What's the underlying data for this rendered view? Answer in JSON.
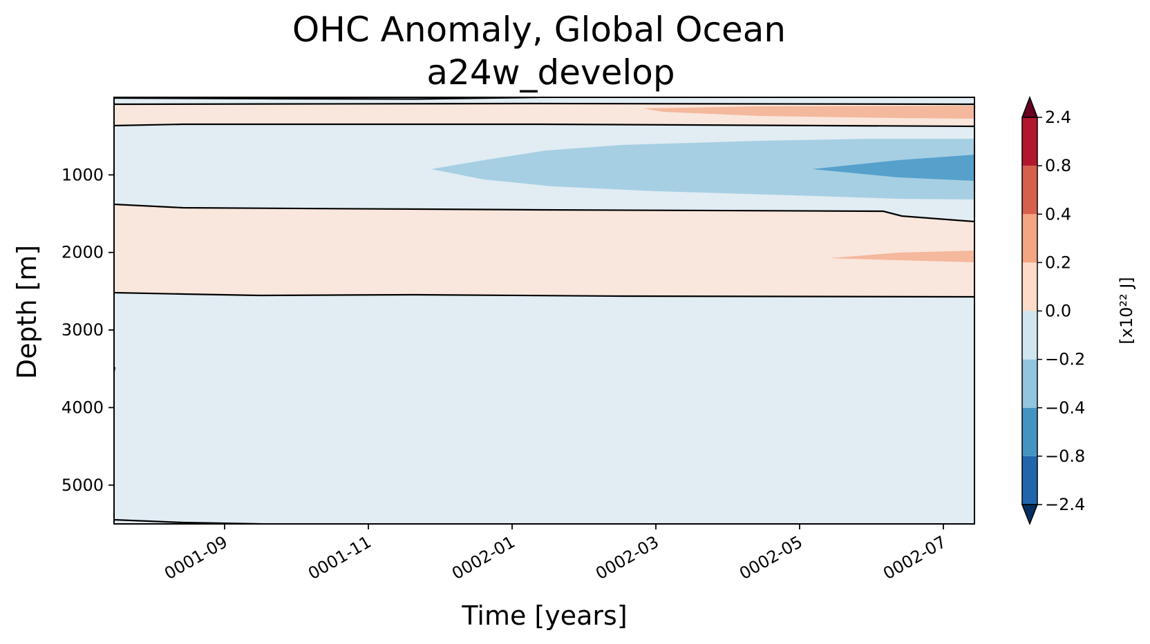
{
  "chart_data": {
    "type": "contourf",
    "title": "OHC Anomaly, Global Ocean",
    "subtitle": "a24w_develop",
    "xlabel": "Time [years]",
    "ylabel": "Depth [m]",
    "x_tick_labels": [
      "0001-09",
      "0001-11",
      "0002-01",
      "0002-03",
      "0002-05",
      "0002-07"
    ],
    "y_ticks": [
      1000,
      2000,
      3000,
      4000,
      5000
    ],
    "y_tick_labels": [
      "1000",
      "2000",
      "3000",
      "4000",
      "5000"
    ],
    "ylim": [
      5500,
      0
    ],
    "y_inverted": true,
    "colorbar": {
      "label": "[x10²² J]",
      "levels": [
        -2.4,
        -0.8,
        -0.4,
        -0.2,
        0.0,
        0.2,
        0.4,
        0.8,
        2.4
      ],
      "tick_labels": [
        "−2.4",
        "−0.8",
        "−0.4",
        "−0.2",
        "0.0",
        "0.2",
        "0.4",
        "0.8",
        "2.4"
      ],
      "colors": [
        "#2166ac",
        "#4393c3",
        "#92c5de",
        "#d1e5f0",
        "#fddbc7",
        "#f4a582",
        "#d6604d",
        "#b2182b"
      ],
      "under_color": "#053061",
      "over_color": "#67001f",
      "extend": "both"
    },
    "regions": [
      {
        "range": "0.0 to 0.2",
        "depth_m": [
          100,
          380
        ],
        "color": "#fddbc7"
      },
      {
        "range": "0.2 to 0.4",
        "depth_m": [
          130,
          300
        ],
        "months": [
          "0002-03",
          "0002-07"
        ],
        "color": "#f4a582"
      },
      {
        "range": "-0.2 to 0.0",
        "depth_m": [
          380,
          1390
        ],
        "color": "#d1e5f0"
      },
      {
        "range": "-0.4 to -0.2",
        "depth_m": [
          560,
          1330
        ],
        "months": [
          "0001-12",
          "0002-07"
        ],
        "color": "#92c5de"
      },
      {
        "range": "-0.8 to -0.4",
        "depth_m": [
          740,
          1080
        ],
        "months": [
          "0002-05",
          "0002-07"
        ],
        "color": "#4393c3"
      },
      {
        "range": "0.0 to 0.2",
        "depth_m": [
          1390,
          2620
        ],
        "color": "#fddbc7"
      },
      {
        "range": "0.2 to 0.4",
        "depth_m": [
          1960,
          2150
        ],
        "months": [
          "0002-05",
          "0002-07"
        ],
        "color": "#f4a582"
      },
      {
        "range": "-0.2 to 0.0",
        "depth_m": [
          2620,
          5500
        ],
        "color": "#d1e5f0"
      }
    ]
  }
}
